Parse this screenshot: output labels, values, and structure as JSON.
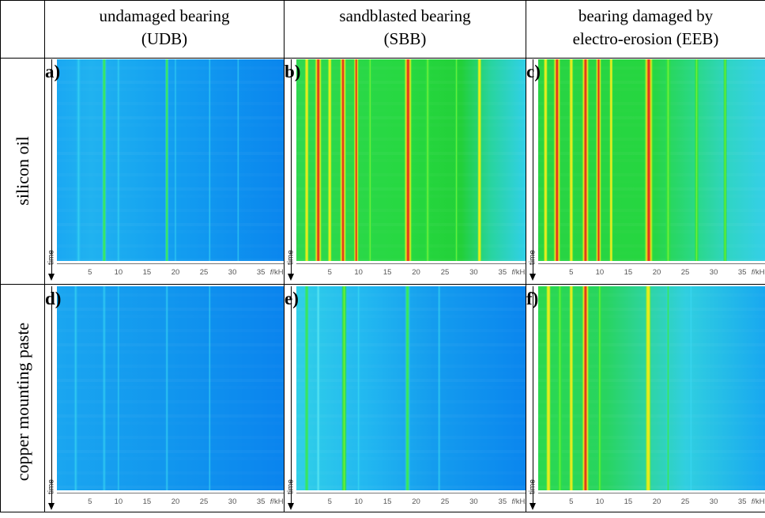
{
  "columns": [
    {
      "line1": "undamaged bearing",
      "line2": "(UDB)"
    },
    {
      "line1": "sandblasted bearing",
      "line2": "(SBB)"
    },
    {
      "line1": "bearing damaged by",
      "line2": "electro-erosion (EEB)"
    }
  ],
  "rows": [
    {
      "label": "silicon oil"
    },
    {
      "label": "copper mounting paste"
    }
  ],
  "panels": [
    {
      "label": "a)",
      "scheme": "blue"
    },
    {
      "label": "b)",
      "scheme": "hot"
    },
    {
      "label": "c)",
      "scheme": "hotter"
    },
    {
      "label": "d)",
      "scheme": "blue-flat"
    },
    {
      "label": "e)",
      "scheme": "blue-mid"
    },
    {
      "label": "f)",
      "scheme": "hot-single"
    }
  ],
  "axis": {
    "time_label": "time",
    "ticks": [
      "5",
      "10",
      "15",
      "20",
      "25",
      "30",
      "35"
    ],
    "unit_var": "f",
    "unit": "/kHz"
  },
  "colors": {
    "base_blue": "#0a83f0",
    "cyan": "#34d6f2",
    "green": "#22e03a",
    "yellow": "#e8f020",
    "red": "#e0321e"
  }
}
